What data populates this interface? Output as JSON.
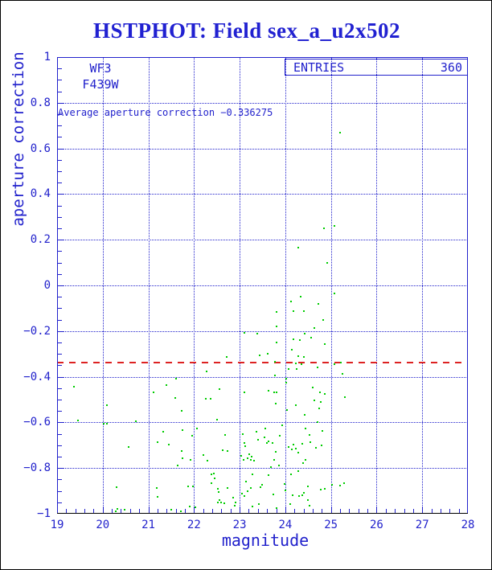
{
  "colors": {
    "axis_blue": "#2222cc",
    "title_blue": "#2121d1",
    "point_green": "#00cc00",
    "line_red": "#dd2222",
    "bottom_axis_black": "#000000",
    "background": "#ffffff"
  },
  "chart_data": {
    "type": "scatter",
    "title": "HSTPHOT: Field sex_a_u2x502",
    "xlabel": "magnitude",
    "ylabel": "aperture correction",
    "xlim": [
      19,
      28
    ],
    "ylim": [
      -1,
      1
    ],
    "x_tick_values": [
      19,
      20,
      21,
      22,
      23,
      24,
      25,
      26,
      27,
      28
    ],
    "x_tick_labels": [
      "19",
      "20",
      "21",
      "22",
      "23",
      "24",
      "25",
      "26",
      "27",
      "28"
    ],
    "x_minor_step": 0.2,
    "y_tick_values": [
      1,
      0.8,
      0.6,
      0.4,
      0.2,
      0,
      -0.2,
      -0.4,
      -0.6,
      -0.8,
      -1
    ],
    "y_tick_labels": [
      "1",
      "0.8",
      "0.6",
      "0.4",
      "0.2",
      "0",
      "−0.2",
      "−0.4",
      "−0.6",
      "−0.8",
      "−1"
    ],
    "y_minor_step": 0.05,
    "grid": "dotted lines at major ticks, legend none",
    "camera": "WF3",
    "filter": "F439W",
    "entries_label": "ENTRIES",
    "entries_value": "360",
    "annotation": "Average aperture correction −0.336275",
    "average_line": {
      "value": -0.336275,
      "style": "dashed",
      "color": "#dd2222"
    },
    "points": [
      [
        25.2,
        0.67
      ],
      [
        24.85,
        0.25
      ],
      [
        25.08,
        0.26
      ],
      [
        24.28,
        0.165
      ],
      [
        24.92,
        0.098
      ],
      [
        25.08,
        -0.035
      ],
      [
        24.34,
        -0.049
      ],
      [
        24.12,
        -0.07
      ],
      [
        24.72,
        -0.081
      ],
      [
        23.81,
        -0.116
      ],
      [
        24.17,
        -0.112
      ],
      [
        24.4,
        -0.112
      ],
      [
        24.83,
        -0.151
      ],
      [
        23.8,
        -0.18
      ],
      [
        23.1,
        -0.207
      ],
      [
        23.38,
        -0.21
      ],
      [
        24.42,
        -0.21
      ],
      [
        24.63,
        -0.186
      ],
      [
        24.18,
        -0.235
      ],
      [
        24.32,
        -0.239
      ],
      [
        24.56,
        -0.228
      ],
      [
        23.81,
        -0.249
      ],
      [
        24.87,
        -0.256
      ],
      [
        24.15,
        -0.281
      ],
      [
        23.61,
        -0.298
      ],
      [
        23.44,
        -0.305
      ],
      [
        22.72,
        -0.312
      ],
      [
        24.41,
        -0.312
      ],
      [
        24.28,
        -0.309
      ],
      [
        23.77,
        -0.333
      ],
      [
        24.23,
        -0.34
      ],
      [
        24.35,
        -0.344
      ],
      [
        25.22,
        -0.337
      ],
      [
        25.08,
        -0.344
      ],
      [
        24.71,
        -0.358
      ],
      [
        24.07,
        -0.365
      ],
      [
        24.24,
        -0.365
      ],
      [
        25.25,
        -0.386
      ],
      [
        23.77,
        -0.393
      ],
      [
        24.02,
        -0.407
      ],
      [
        24.02,
        -0.425
      ],
      [
        22.55,
        -0.453
      ],
      [
        23.1,
        -0.47
      ],
      [
        23.63,
        -0.463
      ],
      [
        23.75,
        -0.47
      ],
      [
        23.81,
        -0.47
      ],
      [
        24.6,
        -0.446
      ],
      [
        24.76,
        -0.467
      ],
      [
        24.87,
        -0.477
      ],
      [
        25.31,
        -0.491
      ],
      [
        24.63,
        -0.502
      ],
      [
        24.77,
        -0.509
      ],
      [
        23.79,
        -0.519
      ],
      [
        24.23,
        -0.526
      ],
      [
        24.74,
        -0.54
      ],
      [
        24.04,
        -0.547
      ],
      [
        24.42,
        -0.568
      ],
      [
        19.37,
        -0.442
      ],
      [
        20.09,
        -0.523
      ],
      [
        22.28,
        -0.375
      ],
      [
        21.6,
        -0.407
      ],
      [
        21.4,
        -0.435
      ],
      [
        21.11,
        -0.47
      ],
      [
        21.59,
        -0.494
      ],
      [
        22.26,
        -0.498
      ],
      [
        22.36,
        -0.498
      ],
      [
        21.73,
        -0.551
      ],
      [
        19.45,
        -0.59
      ],
      [
        20.03,
        -0.604
      ],
      [
        20.1,
        -0.604
      ],
      [
        20.72,
        -0.596
      ],
      [
        20.56,
        -0.709
      ],
      [
        21.32,
        -0.642
      ],
      [
        21.2,
        -0.687
      ],
      [
        21.45,
        -0.698
      ],
      [
        21.75,
        -0.635
      ],
      [
        21.96,
        -0.66
      ],
      [
        21.73,
        -0.726
      ],
      [
        21.75,
        -0.758
      ],
      [
        21.92,
        -0.765
      ],
      [
        21.64,
        -0.789
      ],
      [
        22.06,
        -0.625
      ],
      [
        22.2,
        -0.744
      ],
      [
        22.29,
        -0.768
      ],
      [
        22.43,
        -0.825
      ],
      [
        21.18,
        -0.888
      ],
      [
        21.87,
        -0.881
      ],
      [
        21.98,
        -0.881
      ],
      [
        21.2,
        -0.926
      ],
      [
        21.5,
        -0.982
      ],
      [
        21.71,
        -0.989
      ],
      [
        21.9,
        -0.968
      ],
      [
        20.32,
        -0.979
      ],
      [
        20.48,
        -0.982
      ],
      [
        20.3,
        -0.885
      ],
      [
        22.51,
        -0.589
      ],
      [
        22.68,
        -0.656
      ],
      [
        22.63,
        -0.723
      ],
      [
        22.73,
        -0.726
      ],
      [
        22.39,
        -0.828
      ],
      [
        22.45,
        -0.846
      ],
      [
        22.38,
        -0.867
      ],
      [
        22.52,
        -0.891
      ],
      [
        22.73,
        -0.888
      ],
      [
        22.55,
        -0.94
      ],
      [
        22.52,
        -0.951
      ],
      [
        22.59,
        -0.951
      ],
      [
        22.66,
        -0.954
      ],
      [
        22.86,
        -0.93
      ],
      [
        22.91,
        -0.951
      ],
      [
        23.06,
        -0.652
      ],
      [
        23.1,
        -0.691
      ],
      [
        23.12,
        -0.705
      ],
      [
        23.03,
        -0.747
      ],
      [
        23.08,
        -0.765
      ],
      [
        23.17,
        -0.758
      ],
      [
        23.21,
        -0.74
      ],
      [
        23.26,
        -0.751
      ],
      [
        23.24,
        -0.765
      ],
      [
        23.31,
        -0.768
      ],
      [
        23.37,
        -0.642
      ],
      [
        23.4,
        -0.677
      ],
      [
        23.56,
        -0.628
      ],
      [
        23.54,
        -0.667
      ],
      [
        23.59,
        -0.691
      ],
      [
        23.63,
        -0.684
      ],
      [
        23.72,
        -0.691
      ],
      [
        23.79,
        -0.73
      ],
      [
        23.75,
        -0.765
      ],
      [
        23.28,
        -0.828
      ],
      [
        23.14,
        -0.86
      ],
      [
        23.24,
        -0.888
      ],
      [
        23.45,
        -0.884
      ],
      [
        23.1,
        -0.923
      ],
      [
        23.42,
        -0.958
      ],
      [
        23.63,
        -0.83
      ],
      [
        23.68,
        -0.795
      ],
      [
        23.86,
        -0.789
      ],
      [
        23.88,
        -0.66
      ],
      [
        23.93,
        -0.611
      ],
      [
        24.07,
        -0.709
      ],
      [
        24.14,
        -0.719
      ],
      [
        24.18,
        -0.698
      ],
      [
        24.23,
        -0.716
      ],
      [
        24.28,
        -0.733
      ],
      [
        24.37,
        -0.695
      ],
      [
        24.45,
        -0.628
      ],
      [
        24.53,
        -0.656
      ],
      [
        24.55,
        -0.688
      ],
      [
        24.67,
        -0.712
      ],
      [
        24.8,
        -0.702
      ],
      [
        24.81,
        -0.639
      ],
      [
        24.71,
        -0.6
      ],
      [
        24.39,
        -0.779
      ],
      [
        24.45,
        -0.765
      ],
      [
        24.12,
        -0.828
      ],
      [
        24.28,
        -0.814
      ],
      [
        24.0,
        -0.898
      ],
      [
        24.16,
        -0.919
      ],
      [
        24.31,
        -0.923
      ],
      [
        24.37,
        -0.919
      ],
      [
        24.49,
        -0.94
      ],
      [
        25.02,
        -0.874
      ],
      [
        25.29,
        -0.867
      ],
      [
        24.87,
        -0.891
      ],
      [
        24.11,
        -0.958
      ],
      [
        22.9,
        -0.965
      ],
      [
        23.8,
        -0.975
      ],
      [
        23.28,
        -0.968
      ],
      [
        24.53,
        -0.965
      ],
      [
        22.03,
        -0.972
      ],
      [
        22.54,
        -0.905
      ],
      [
        23.17,
        -0.902
      ],
      [
        24.49,
        -0.88
      ],
      [
        23.05,
        -0.912
      ],
      [
        23.74,
        -0.916
      ],
      [
        23.98,
        -0.87
      ],
      [
        24.4,
        -0.909
      ],
      [
        24.77,
        -0.895
      ],
      [
        20.29,
        -0.989
      ],
      [
        23.49,
        -0.874
      ],
      [
        25.2,
        -0.877
      ]
    ]
  }
}
